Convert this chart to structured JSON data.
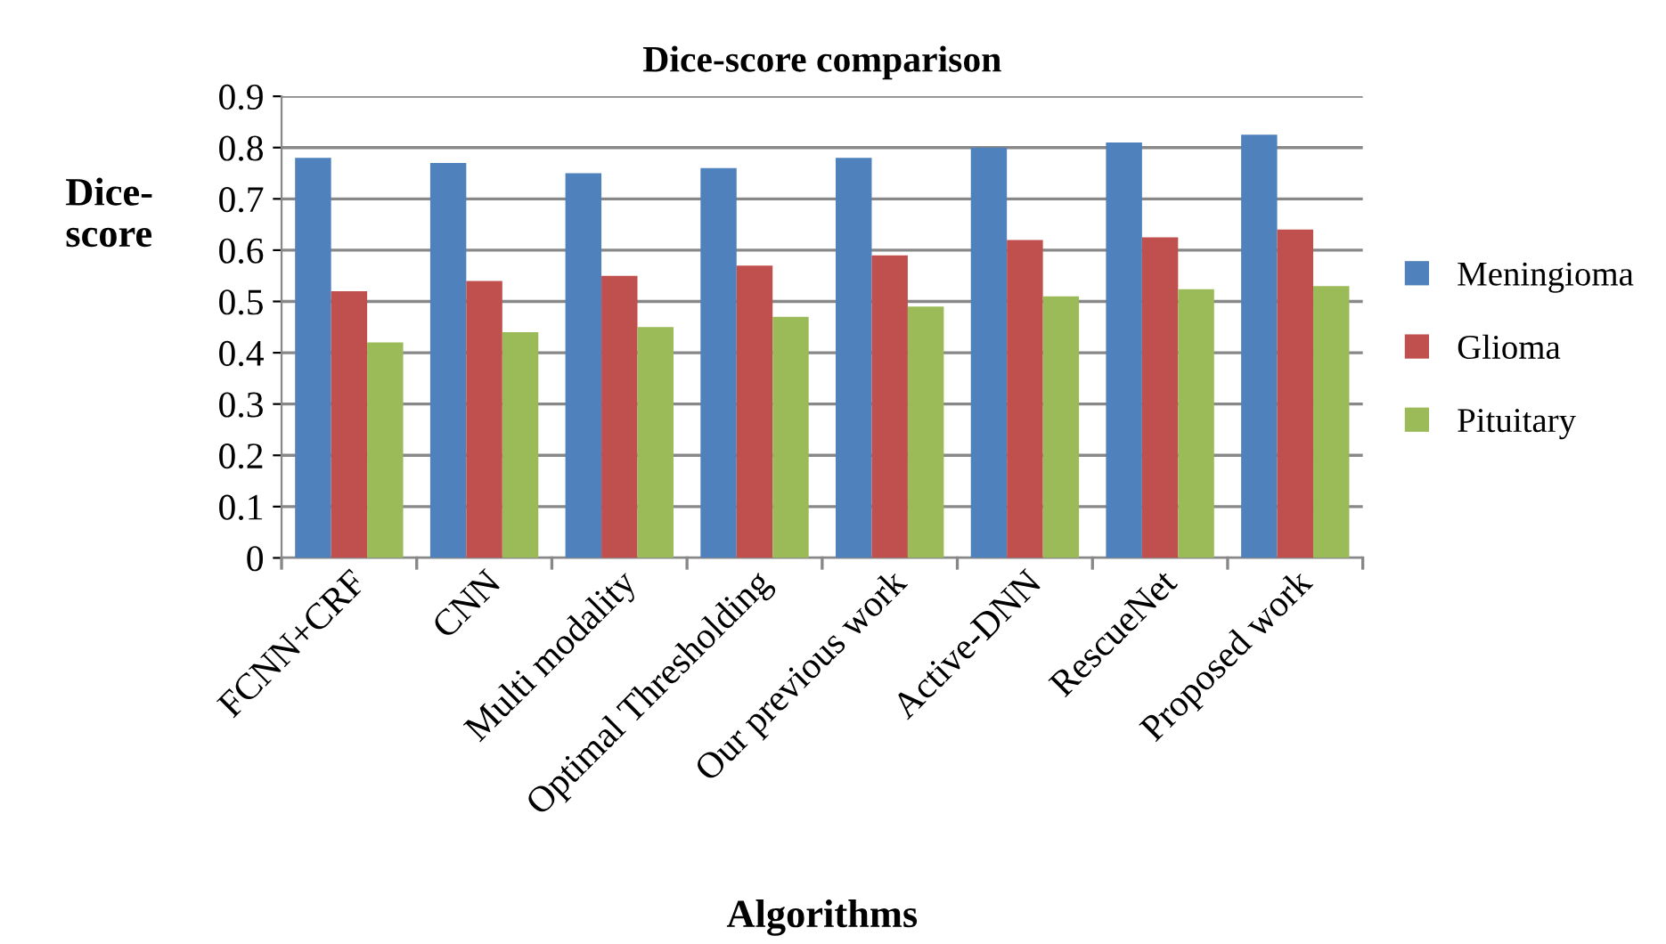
{
  "chart_data": {
    "type": "bar",
    "title": "Dice-score comparison",
    "xlabel": "Algorithms",
    "ylabel": "Dice-\nscore",
    "categories": [
      "FCNN+CRF",
      "CNN",
      "Multi modality",
      "Optimal Thresholding",
      "Our previous work",
      "Active-DNN",
      "RescueNet",
      "Proposed work"
    ],
    "series": [
      {
        "name": "Meningioma",
        "color": "#4f81bd",
        "values": [
          0.78,
          0.77,
          0.75,
          0.76,
          0.78,
          0.8,
          0.81,
          0.825
        ]
      },
      {
        "name": "Glioma",
        "color": "#c0504d",
        "values": [
          0.52,
          0.54,
          0.55,
          0.57,
          0.59,
          0.62,
          0.625,
          0.64
        ]
      },
      {
        "name": "Pituitary",
        "color": "#9bbb59",
        "values": [
          0.42,
          0.44,
          0.45,
          0.47,
          0.49,
          0.51,
          0.524,
          0.53
        ]
      }
    ],
    "ylim": [
      0,
      0.9
    ],
    "yticks": [
      0,
      0.1,
      0.2,
      0.3,
      0.4,
      0.5,
      0.6,
      0.7,
      0.8,
      0.9
    ],
    "grid": "y",
    "legend": "right"
  }
}
